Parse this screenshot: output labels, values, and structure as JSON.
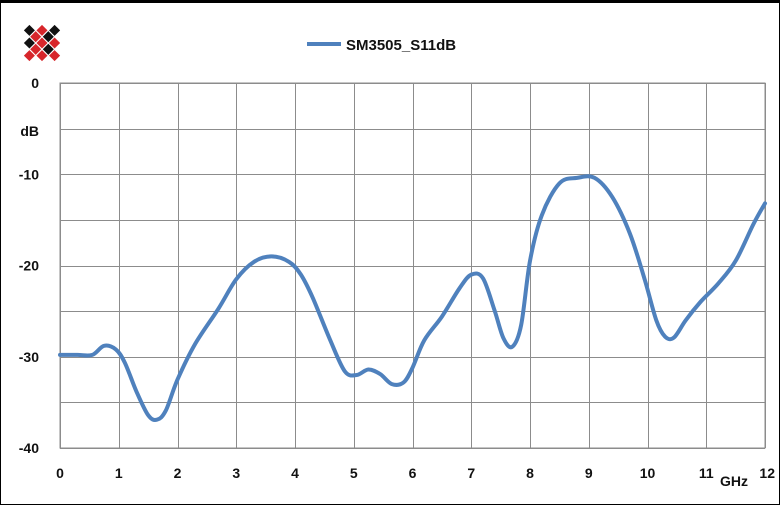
{
  "chart_data": {
    "type": "line",
    "title": "",
    "xlabel": "GHz",
    "ylabel": "dB",
    "xlim": [
      0,
      12
    ],
    "ylim": [
      -40,
      0
    ],
    "grid": true,
    "legend_position": "top",
    "xticks": [
      {
        "value": 0,
        "label": "0"
      },
      {
        "value": 1,
        "label": "1"
      },
      {
        "value": 2,
        "label": "2"
      },
      {
        "value": 3,
        "label": "3"
      },
      {
        "value": 4,
        "label": "4"
      },
      {
        "value": 5,
        "label": "5"
      },
      {
        "value": 6,
        "label": "6"
      },
      {
        "value": 7,
        "label": "7"
      },
      {
        "value": 8,
        "label": "8"
      },
      {
        "value": 9,
        "label": "9"
      },
      {
        "value": 10,
        "label": "10"
      },
      {
        "value": 11,
        "label": "11"
      },
      {
        "value": 12,
        "label": "12"
      }
    ],
    "yticks": [
      {
        "value": 0,
        "label": "0"
      },
      {
        "value": -10,
        "label": "-10"
      },
      {
        "value": -20,
        "label": "-20"
      },
      {
        "value": -30,
        "label": "-30"
      },
      {
        "value": -40,
        "label": "-40"
      }
    ],
    "series": [
      {
        "name": "SM3505_S11dB",
        "color": "#4f81bd",
        "x": [
          0,
          0.3,
          0.55,
          0.75,
          0.95,
          1.1,
          1.3,
          1.5,
          1.65,
          1.8,
          2.0,
          2.3,
          2.7,
          3.0,
          3.3,
          3.6,
          3.9,
          4.1,
          4.3,
          4.6,
          4.85,
          5.05,
          5.25,
          5.45,
          5.65,
          5.85,
          6.0,
          6.2,
          6.5,
          6.8,
          7.0,
          7.2,
          7.4,
          7.55,
          7.7,
          7.85,
          8.0,
          8.2,
          8.5,
          8.8,
          9.1,
          9.4,
          9.7,
          9.95,
          10.15,
          10.3,
          10.45,
          10.65,
          10.9,
          11.2,
          11.5,
          11.8,
          12.0
        ],
        "y": [
          -29.8,
          -29.8,
          -29.8,
          -28.8,
          -29.2,
          -30.6,
          -33.8,
          -36.4,
          -36.9,
          -35.9,
          -32.5,
          -28.6,
          -24.7,
          -21.5,
          -19.6,
          -19.0,
          -19.6,
          -21.0,
          -23.5,
          -28.2,
          -31.6,
          -32.0,
          -31.4,
          -31.9,
          -33.0,
          -32.8,
          -31.2,
          -28.2,
          -25.6,
          -22.5,
          -21.0,
          -21.4,
          -25.0,
          -28.0,
          -28.9,
          -26.5,
          -19.5,
          -14.5,
          -11.0,
          -10.4,
          -10.4,
          -12.5,
          -16.5,
          -21.5,
          -26.0,
          -27.8,
          -27.9,
          -26.0,
          -24.0,
          -22.0,
          -19.5,
          -15.5,
          -13.2
        ]
      }
    ]
  }
}
